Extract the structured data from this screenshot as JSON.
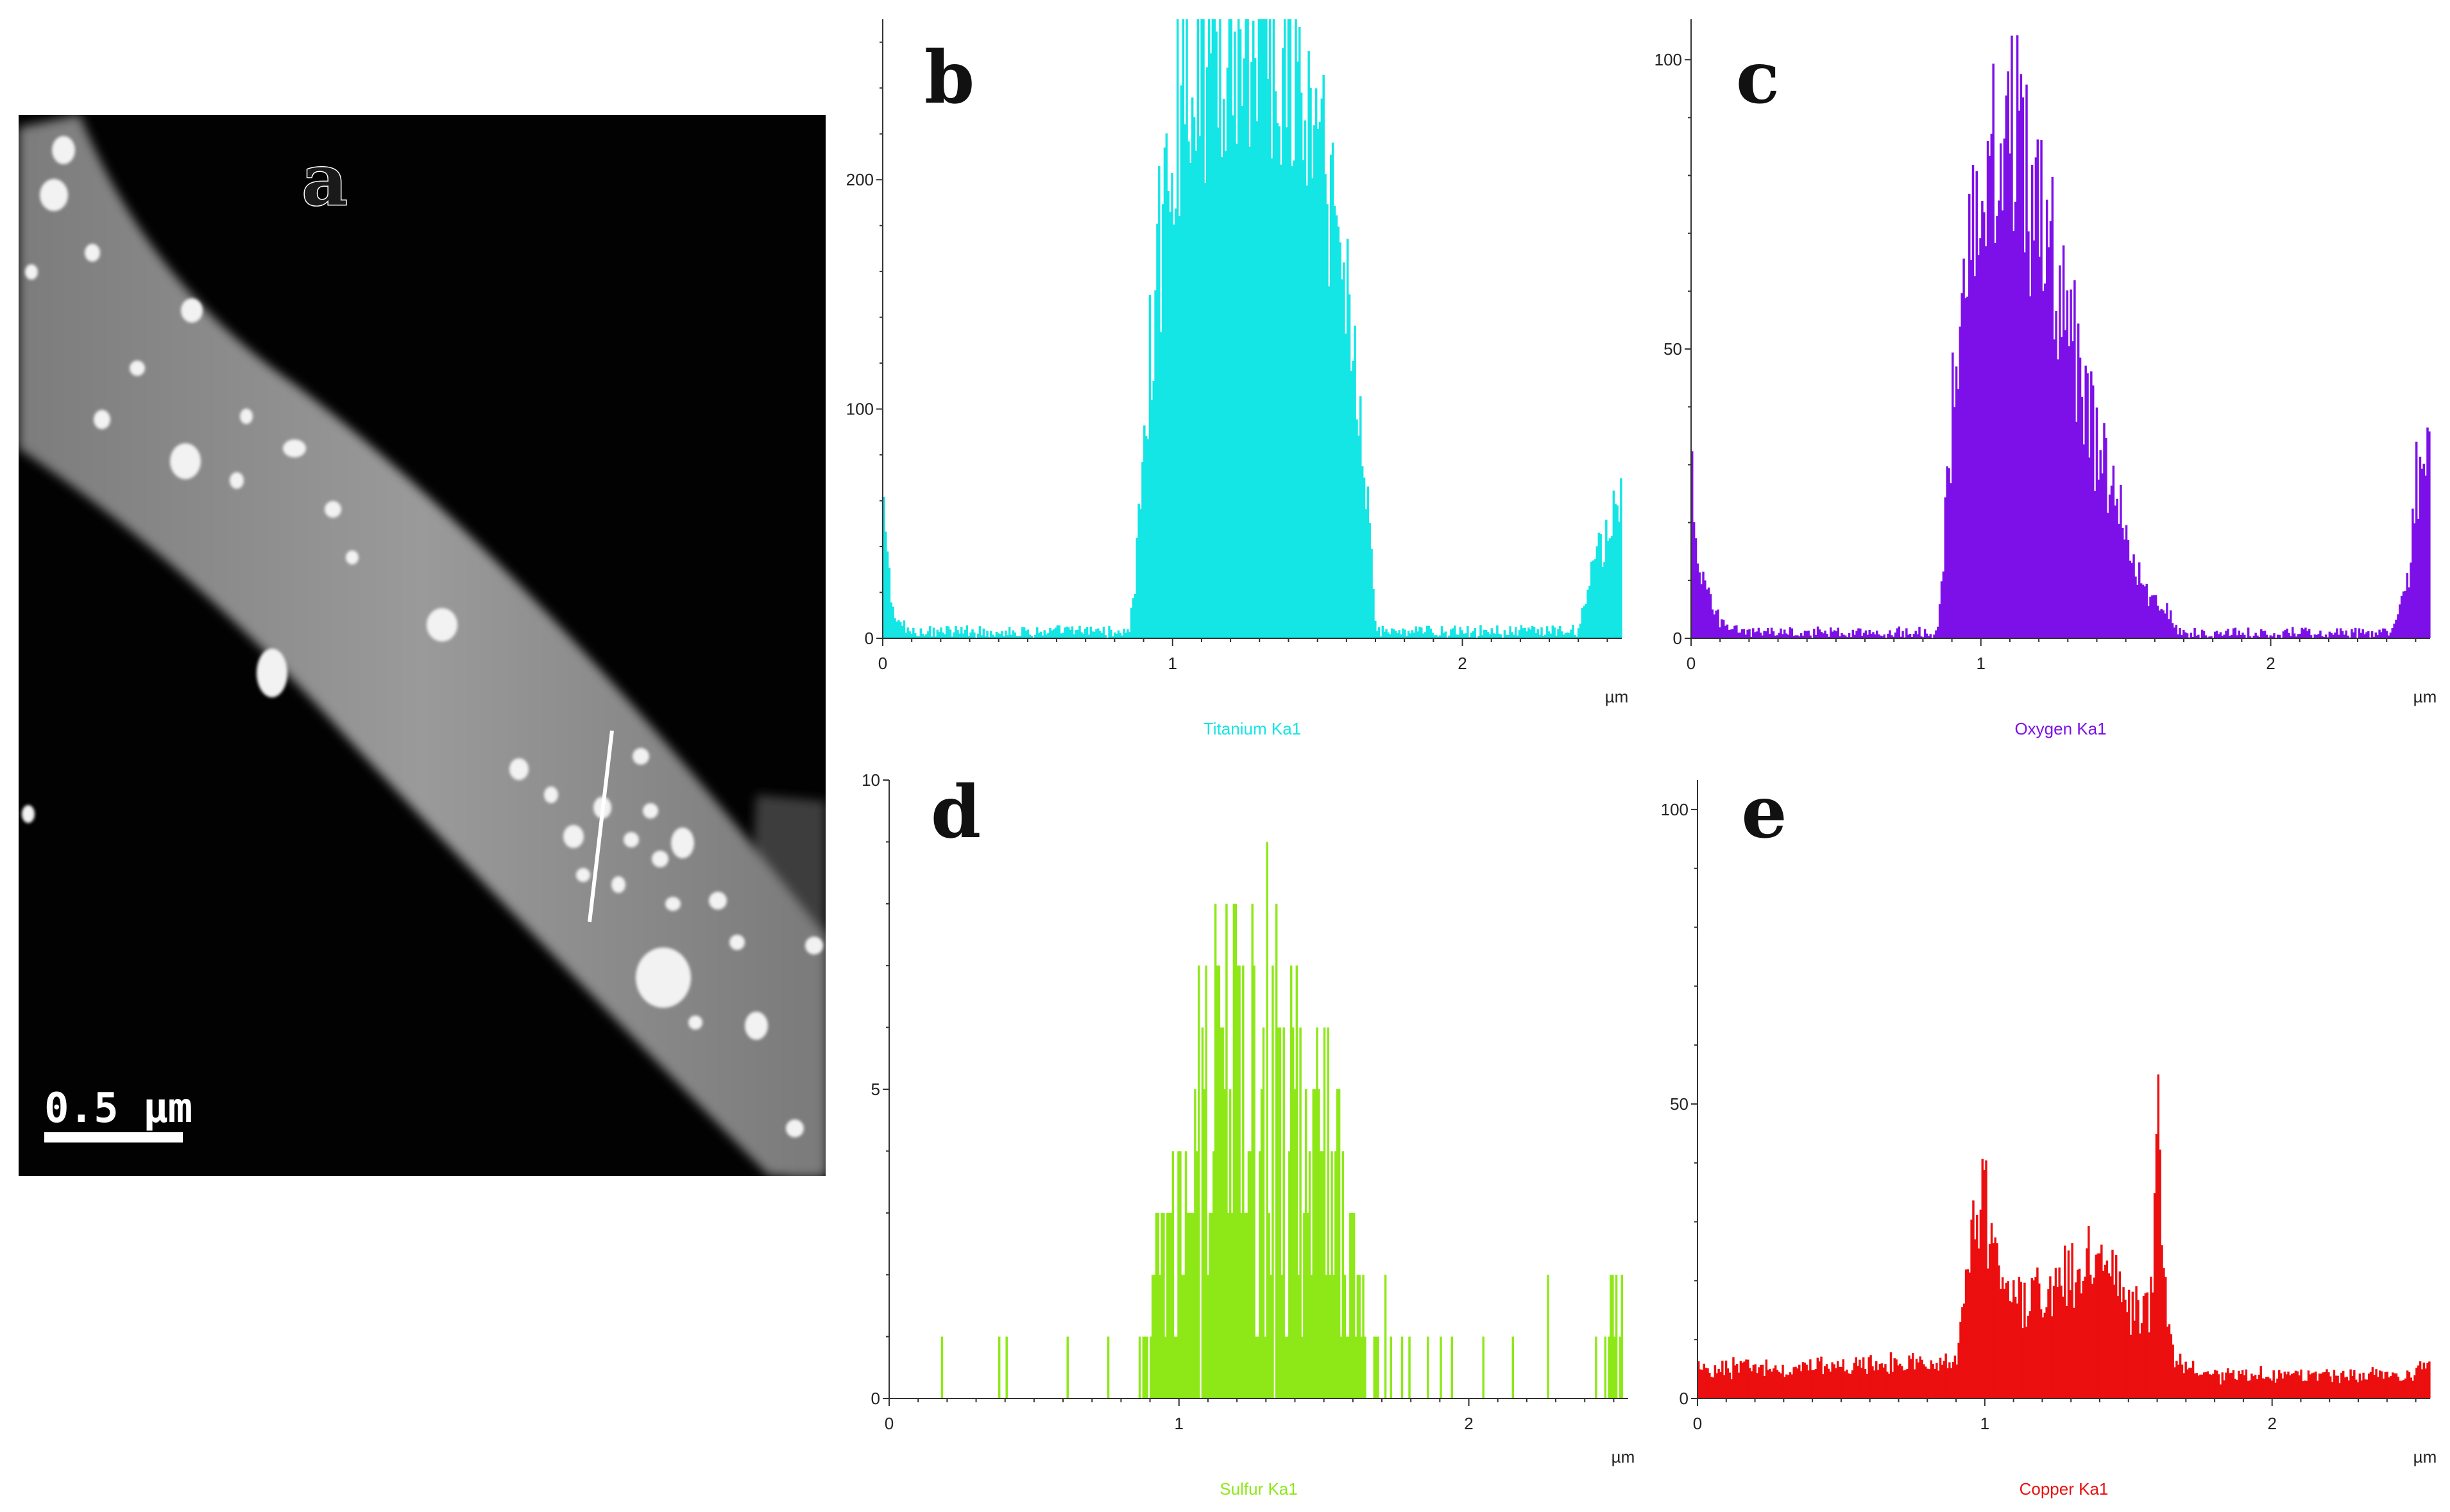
{
  "image": {
    "panel_label": "a",
    "scale_bar": "0.5 µm"
  },
  "chart_data": [
    {
      "type": "bar",
      "panel": "b",
      "series_label": "Titanium Ka1",
      "color": "#14e5e5",
      "unit": "µm",
      "xlim": [
        0,
        2.55
      ],
      "ylim": [
        0,
        270
      ],
      "xticks": [
        0,
        1,
        2
      ],
      "yticks": [
        0,
        100,
        200
      ],
      "profile": [
        [
          0,
          55
        ],
        [
          0.02,
          30
        ],
        [
          0.04,
          8
        ],
        [
          0.1,
          3
        ],
        [
          0.85,
          3
        ],
        [
          0.88,
          40
        ],
        [
          0.92,
          120
        ],
        [
          0.97,
          190
        ],
        [
          1.02,
          240
        ],
        [
          1.1,
          255
        ],
        [
          1.2,
          262
        ],
        [
          1.3,
          265
        ],
        [
          1.38,
          255
        ],
        [
          1.45,
          235
        ],
        [
          1.52,
          205
        ],
        [
          1.58,
          170
        ],
        [
          1.63,
          120
        ],
        [
          1.67,
          70
        ],
        [
          1.7,
          5
        ],
        [
          1.72,
          3
        ],
        [
          2.4,
          3
        ],
        [
          2.43,
          20
        ],
        [
          2.47,
          40
        ],
        [
          2.52,
          55
        ]
      ]
    },
    {
      "type": "bar",
      "panel": "c",
      "series_label": "Oxygen Ka1",
      "color": "#7d10e8",
      "unit": "µm",
      "xlim": [
        0,
        2.55
      ],
      "ylim": [
        0,
        107
      ],
      "xticks": [
        0,
        1,
        2
      ],
      "yticks": [
        0,
        50,
        100
      ],
      "profile": [
        [
          0,
          30
        ],
        [
          0.02,
          14
        ],
        [
          0.05,
          8
        ],
        [
          0.1,
          3
        ],
        [
          0.2,
          1
        ],
        [
          0.85,
          1
        ],
        [
          0.88,
          22
        ],
        [
          0.92,
          55
        ],
        [
          0.97,
          75
        ],
        [
          1.03,
          86
        ],
        [
          1.1,
          86
        ],
        [
          1.16,
          80
        ],
        [
          1.22,
          70
        ],
        [
          1.3,
          55
        ],
        [
          1.38,
          38
        ],
        [
          1.45,
          25
        ],
        [
          1.52,
          14
        ],
        [
          1.6,
          6
        ],
        [
          1.65,
          4
        ],
        [
          1.68,
          1
        ],
        [
          2.42,
          1
        ],
        [
          2.47,
          10
        ],
        [
          2.5,
          27
        ],
        [
          2.55,
          33
        ]
      ]
    },
    {
      "type": "bar",
      "panel": "d",
      "series_label": "Sulfur Ka1",
      "color": "#8ee818",
      "unit": "µm",
      "xlim": [
        0,
        2.55
      ],
      "ylim": [
        0,
        10
      ],
      "xticks": [
        0,
        1,
        2
      ],
      "yticks": [
        0,
        5,
        10
      ],
      "profile": [
        [
          0,
          0.3
        ],
        [
          0.85,
          0.3
        ],
        [
          0.9,
          1.5
        ],
        [
          0.98,
          3
        ],
        [
          1.05,
          4
        ],
        [
          1.12,
          5
        ],
        [
          1.2,
          5
        ],
        [
          1.3,
          4.8
        ],
        [
          1.4,
          4.5
        ],
        [
          1.5,
          3.8
        ],
        [
          1.58,
          2.5
        ],
        [
          1.65,
          1
        ],
        [
          1.7,
          0.3
        ],
        [
          2.45,
          0.3
        ],
        [
          2.5,
          1.5
        ],
        [
          2.55,
          0.8
        ]
      ]
    },
    {
      "type": "bar",
      "panel": "e",
      "series_label": "Copper Ka1",
      "color": "#ec0f0f",
      "unit": "µm",
      "xlim": [
        0,
        2.55
      ],
      "ylim": [
        0,
        105
      ],
      "xticks": [
        0,
        1,
        2
      ],
      "yticks": [
        0,
        50,
        100
      ],
      "profile": [
        [
          0,
          5
        ],
        [
          0.9,
          6
        ],
        [
          0.95,
          28
        ],
        [
          1.0,
          34
        ],
        [
          1.05,
          20
        ],
        [
          1.15,
          17
        ],
        [
          1.25,
          18
        ],
        [
          1.35,
          23
        ],
        [
          1.45,
          22
        ],
        [
          1.52,
          14
        ],
        [
          1.58,
          16
        ],
        [
          1.6,
          60
        ],
        [
          1.62,
          18
        ],
        [
          1.66,
          7
        ],
        [
          1.75,
          4
        ],
        [
          2.5,
          4
        ],
        [
          2.55,
          8
        ]
      ]
    }
  ]
}
